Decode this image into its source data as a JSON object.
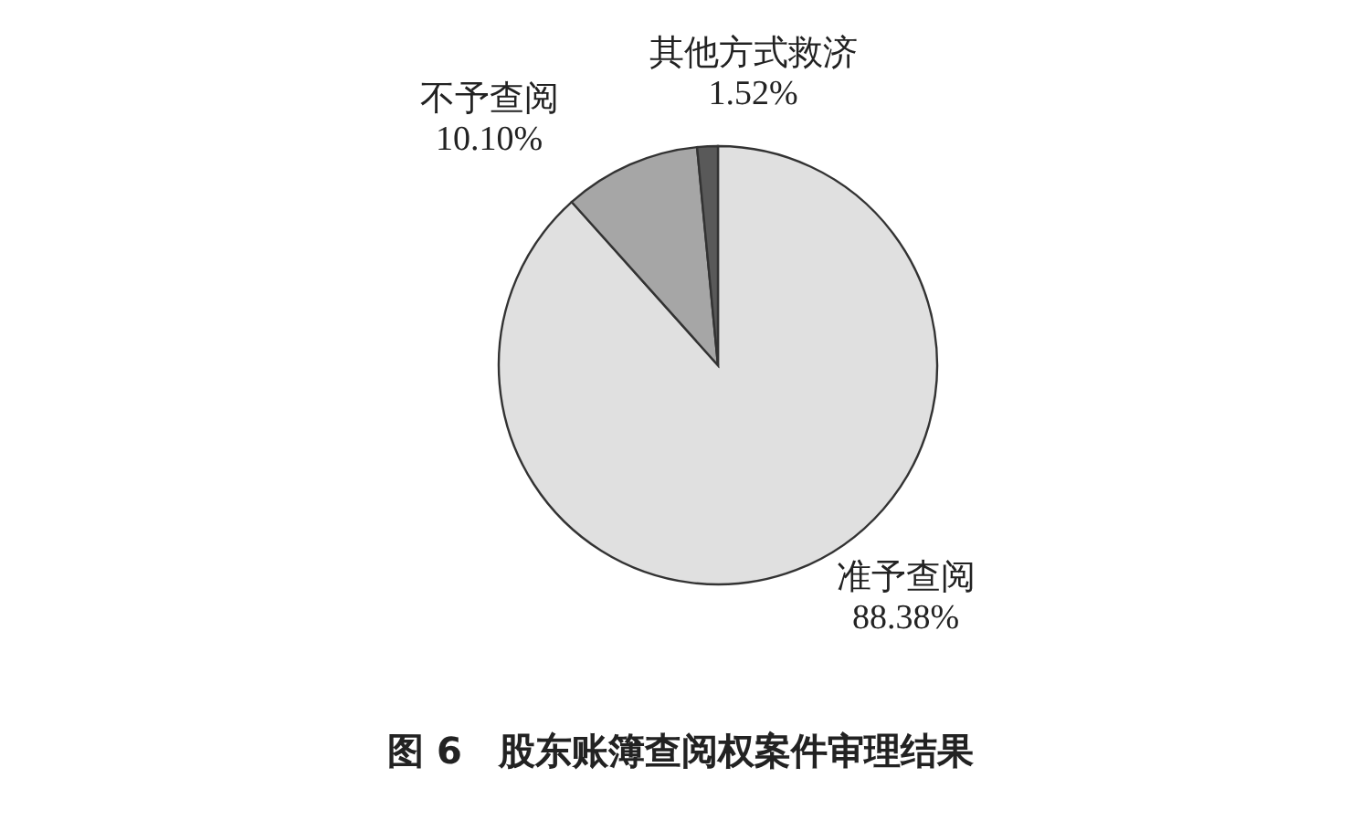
{
  "chart_data": {
    "type": "pie",
    "title": "图 6　股东账簿查阅权案件审理结果",
    "categories": [
      "准予查阅",
      "不予查阅",
      "其他方式救济"
    ],
    "values": [
      88.38,
      10.1,
      1.52
    ],
    "colors": [
      "#e0e0e0",
      "#a6a6a6",
      "#595959"
    ],
    "value_labels": [
      "88.38%",
      "10.10%",
      "1.52%"
    ]
  }
}
